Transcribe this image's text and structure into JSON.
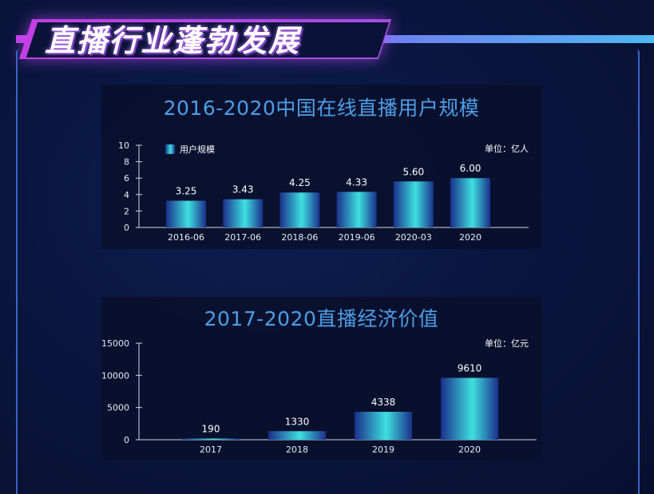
{
  "header": {
    "title": "直播行业蓬勃发展"
  },
  "colors": {
    "bar_dark": "#1a2f8c",
    "bar_light": "#3ee0e0",
    "title_blue": "#4d9de6",
    "banner_purple": "#c040e8"
  },
  "chart_data": [
    {
      "type": "bar",
      "title": "2016-2020中国在线直播用户规模",
      "unit": "单位：亿人",
      "legend": "用户规模",
      "legend_position": "top-left",
      "categories": [
        "2016-06",
        "2017-06",
        "2018-06",
        "2019-06",
        "2020-03",
        "2020"
      ],
      "values": [
        3.25,
        3.43,
        4.25,
        4.33,
        5.6,
        6.0
      ],
      "labels": [
        "3.25",
        "3.43",
        "4.25",
        "4.33",
        "5.60",
        "6.00"
      ],
      "yticks": [
        "0",
        "2",
        "4",
        "6",
        "8",
        "10"
      ],
      "ylim": [
        0,
        10
      ],
      "grid": false
    },
    {
      "type": "bar",
      "title": "2017-2020直播经济价值",
      "unit": "单位：亿元",
      "categories": [
        "2017",
        "2018",
        "2019",
        "2020"
      ],
      "values": [
        190,
        1330,
        4338,
        9610
      ],
      "labels": [
        "190",
        "1330",
        "4338",
        "9610"
      ],
      "yticks": [
        "0",
        "5000",
        "10000",
        "15000"
      ],
      "ylim": [
        0,
        15000
      ],
      "grid": false
    }
  ]
}
